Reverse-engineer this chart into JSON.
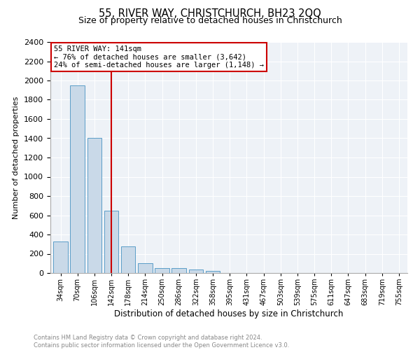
{
  "title": "55, RIVER WAY, CHRISTCHURCH, BH23 2QQ",
  "subtitle": "Size of property relative to detached houses in Christchurch",
  "xlabel": "Distribution of detached houses by size in Christchurch",
  "ylabel": "Number of detached properties",
  "bin_labels": [
    "34sqm",
    "70sqm",
    "106sqm",
    "142sqm",
    "178sqm",
    "214sqm",
    "250sqm",
    "286sqm",
    "322sqm",
    "358sqm",
    "395sqm",
    "431sqm",
    "467sqm",
    "503sqm",
    "539sqm",
    "575sqm",
    "611sqm",
    "647sqm",
    "683sqm",
    "719sqm",
    "755sqm"
  ],
  "bar_values": [
    325,
    1950,
    1400,
    650,
    275,
    105,
    50,
    50,
    35,
    20,
    0,
    0,
    0,
    0,
    0,
    0,
    0,
    0,
    0,
    0,
    0
  ],
  "bar_color": "#c9d9e8",
  "bar_edge_color": "#5a9dc8",
  "vline_x": 3,
  "vline_color": "#cc0000",
  "annotation_text": "55 RIVER WAY: 141sqm\n← 76% of detached houses are smaller (3,642)\n24% of semi-detached houses are larger (1,148) →",
  "annotation_box_color": "#ffffff",
  "annotation_box_edge": "#cc0000",
  "ylim": [
    0,
    2400
  ],
  "yticks": [
    0,
    200,
    400,
    600,
    800,
    1000,
    1200,
    1400,
    1600,
    1800,
    2000,
    2200,
    2400
  ],
  "footer_line1": "Contains HM Land Registry data © Crown copyright and database right 2024.",
  "footer_line2": "Contains public sector information licensed under the Open Government Licence v3.0.",
  "plot_bg_color": "#eef2f7"
}
